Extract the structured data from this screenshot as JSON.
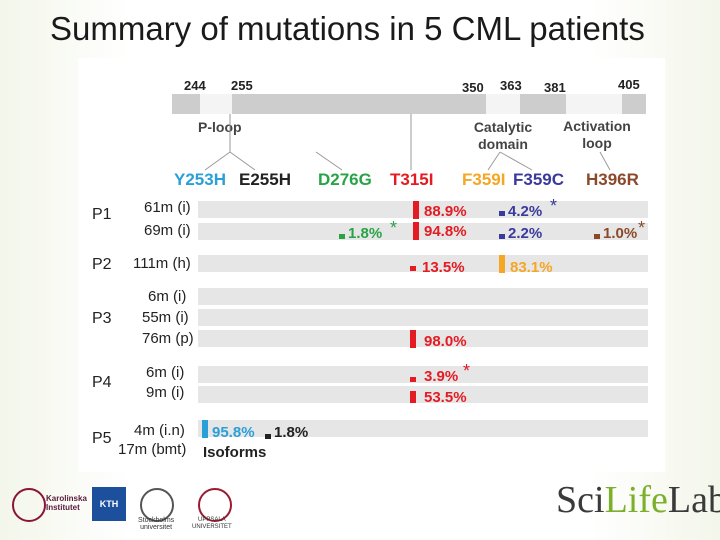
{
  "title": "Summary of mutations in 5 CML patients",
  "positions": [
    "244",
    "255",
    "350",
    "363",
    "381",
    "405"
  ],
  "domains": {
    "ploop": "P-loop",
    "catalytic_1": "Catalytic",
    "catalytic_2": "domain",
    "activation_1": "Activation",
    "activation_2": "loop"
  },
  "mutations": [
    "Y253H",
    "E255H",
    "D276G",
    "T315I",
    "F359I",
    "F359C",
    "H396R"
  ],
  "patients": [
    "P1",
    "P2",
    "P3",
    "P4",
    "P5"
  ],
  "timepoints": [
    "61m (i)",
    "69m (i)",
    "111m (h)",
    "6m (i)",
    "55m (i)",
    "76m (p)",
    "6m (i)",
    "9m (i)",
    "4m (i.n)",
    "17m (bmt)"
  ],
  "values": {
    "d276g": "1.8%",
    "t315i_p1a": "88.9%",
    "t315i_p1b": "94.8%",
    "f359c_p1a": "4.2%",
    "f359c_p1b": "2.2%",
    "h396r": "1.0%",
    "t315i_p2": "13.5%",
    "f359i_p2": "83.1%",
    "t315i_p3": "98.0%",
    "t315i_p4a": "3.9%",
    "t315i_p4b": "53.5%",
    "y253h_p5": "95.8%",
    "e255h_p5": "1.8%"
  },
  "stars": {
    "d276g": "*",
    "f359c": "*",
    "h396r": "*",
    "t315i_p4": "*"
  },
  "isoforms": "Isoforms",
  "footer": {
    "ki_1": "Karolinska",
    "ki_2": "Institutet",
    "kth": "KTH",
    "su_1": "Stockholms",
    "su_2": "universitet",
    "uu_1": "UPPSALA",
    "uu_2": "UNIVERSITET",
    "scilife_1": "Sci",
    "scilife_2": "Life",
    "scilife_3": "Lab"
  },
  "colors": {
    "red": "#e41b23",
    "blue": "#3a3a9e",
    "orange": "#f5a623",
    "green": "#28a447",
    "brown": "#8a4a2a",
    "cyan": "#2a9fd8"
  }
}
